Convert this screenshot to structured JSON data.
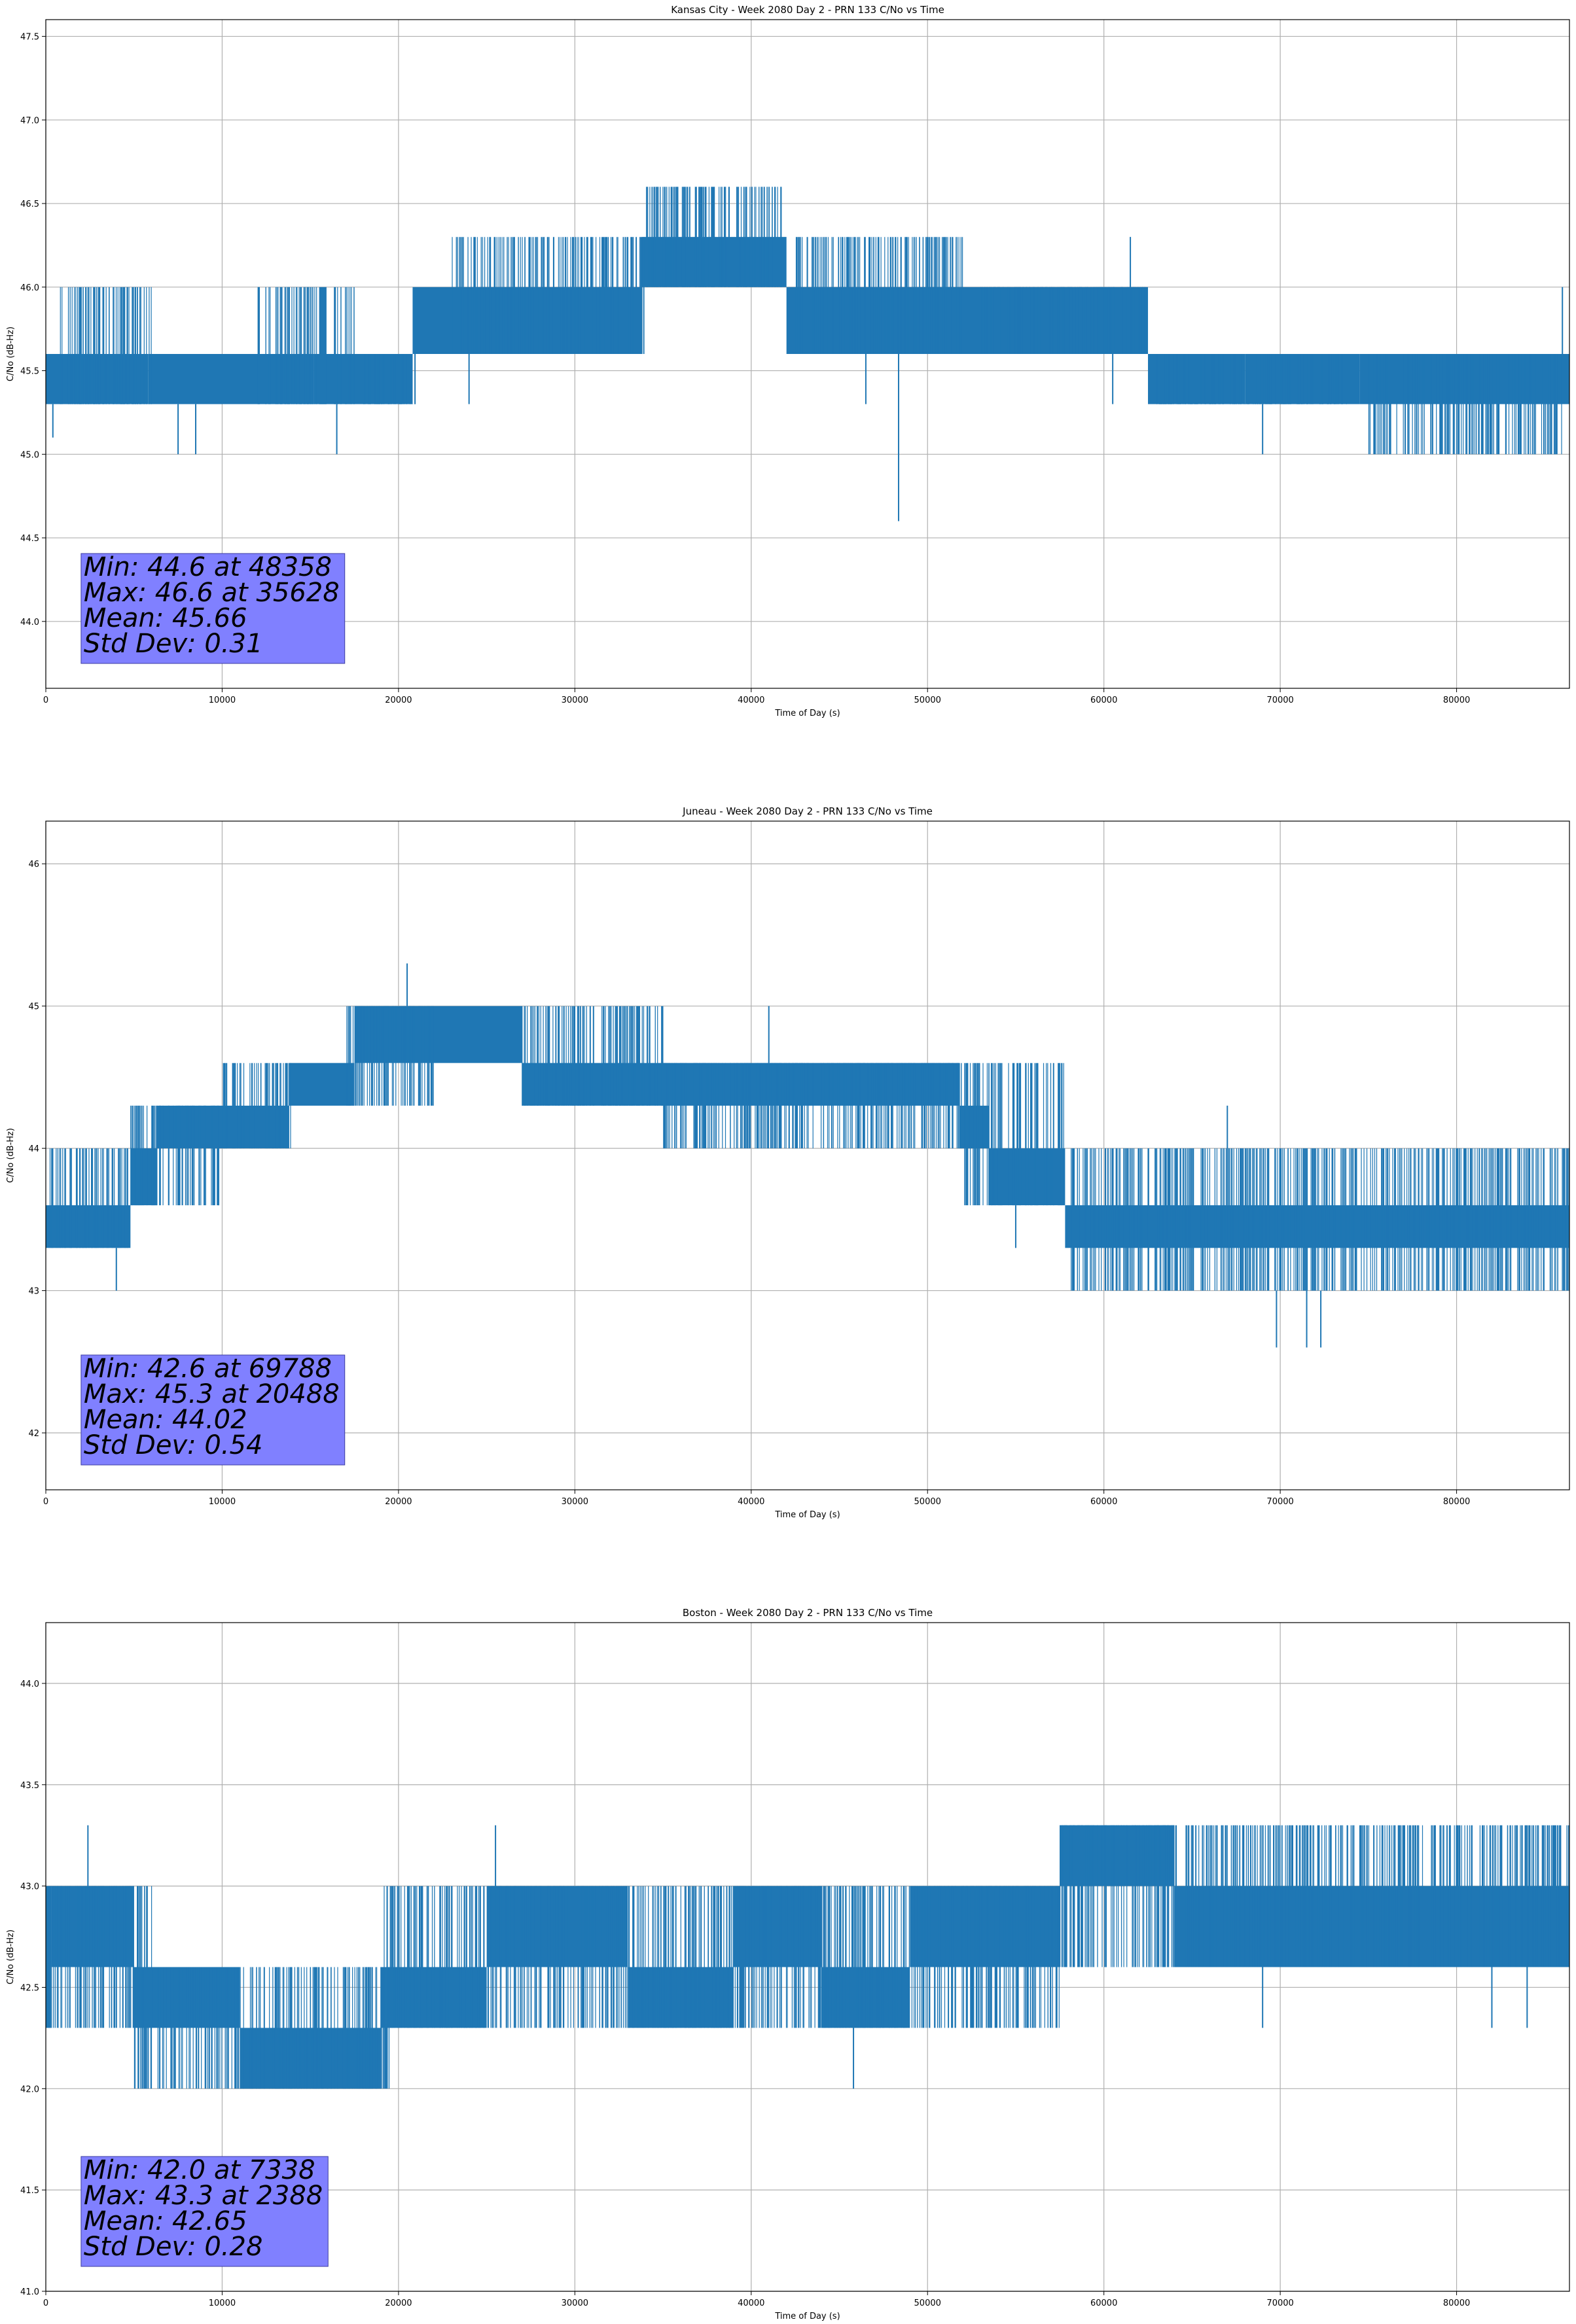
{
  "figure": {
    "line_color": "#1f77b4",
    "grid_color": "#b0b0b0",
    "stats_box_color": "#8080ff"
  },
  "chart_data": [
    {
      "type": "line",
      "title": "Kansas City - Week 2080 Day 2 - PRN 133 C/No vs Time",
      "xlabel": "Time of Day (s)",
      "ylabel": "C/No (dB-Hz)",
      "xlim": [
        0,
        86400
      ],
      "ylim": [
        43.6,
        47.6
      ],
      "xticks": [
        0,
        10000,
        20000,
        30000,
        40000,
        50000,
        60000,
        70000,
        80000
      ],
      "yticks": [
        44.0,
        44.5,
        45.0,
        45.5,
        46.0,
        46.5,
        47.0,
        47.5
      ],
      "ytick_labels": [
        "44.0",
        "44.5",
        "45.0",
        "45.5",
        "46.0",
        "46.5",
        "47.0",
        "47.5"
      ],
      "grid": true,
      "series": [
        {
          "bands": [
            {
              "x": [
                0,
                5800
              ],
              "y": [
                45.3,
                45.6
              ]
            },
            {
              "x": [
                5800,
                15200
              ],
              "y": [
                45.3,
                45.6
              ]
            },
            {
              "x": [
                15200,
                20800
              ],
              "y": [
                45.3,
                45.6
              ]
            },
            {
              "x": [
                20800,
                33800
              ],
              "y": [
                45.6,
                46.0
              ]
            },
            {
              "x": [
                33800,
                42000
              ],
              "y": [
                46.0,
                46.3
              ]
            },
            {
              "x": [
                42000,
                62500
              ],
              "y": [
                45.6,
                46.0
              ]
            },
            {
              "x": [
                62500,
                68000
              ],
              "y": [
                45.3,
                45.6
              ]
            },
            {
              "x": [
                68000,
                74500
              ],
              "y": [
                45.3,
                45.6
              ]
            },
            {
              "x": [
                74500,
                86400
              ],
              "y": [
                45.3,
                45.6
              ]
            }
          ],
          "variation": [
            {
              "x": [
                800,
                6000
              ],
              "y": [
                45.3,
                46.0
              ]
            },
            {
              "x": [
                12000,
                17500
              ],
              "y": [
                45.3,
                46.0
              ]
            },
            {
              "x": [
                18000,
                21000
              ],
              "y": [
                45.3,
                45.6
              ]
            },
            {
              "x": [
                23000,
                34000
              ],
              "y": [
                45.6,
                46.3
              ]
            },
            {
              "x": [
                34000,
                42000
              ],
              "y": [
                46.0,
                46.6
              ]
            },
            {
              "x": [
                42500,
                52000
              ],
              "y": [
                45.6,
                46.3
              ]
            },
            {
              "x": [
                53000,
                62500
              ],
              "y": [
                45.6,
                46.0
              ]
            },
            {
              "x": [
                63000,
                74000
              ],
              "y": [
                45.3,
                45.6
              ]
            },
            {
              "x": [
                75000,
                86000
              ],
              "y": [
                45.0,
                45.6
              ]
            }
          ],
          "excursions": [
            {
              "x": 400,
              "y": [
                45.1,
                45.3
              ]
            },
            {
              "x": 7500,
              "y": [
                45.0,
                45.3
              ]
            },
            {
              "x": 8500,
              "y": [
                45.0,
                45.3
              ]
            },
            {
              "x": 16500,
              "y": [
                45.0,
                45.3
              ]
            },
            {
              "x": 24000,
              "y": [
                45.3,
                45.6
              ]
            },
            {
              "x": 35500,
              "y": [
                46.3,
                46.6
              ]
            },
            {
              "x": 37200,
              "y": [
                46.3,
                46.6
              ]
            },
            {
              "x": 48358,
              "y": [
                44.6,
                45.6
              ]
            },
            {
              "x": 46500,
              "y": [
                45.3,
                45.6
              ]
            },
            {
              "x": 60500,
              "y": [
                45.3,
                45.6
              ]
            },
            {
              "x": 61500,
              "y": [
                46.0,
                46.3
              ]
            },
            {
              "x": 69000,
              "y": [
                45.0,
                45.3
              ]
            },
            {
              "x": 83500,
              "y": [
                45.0,
                45.3
              ]
            },
            {
              "x": 86000,
              "y": [
                45.6,
                46.0
              ]
            }
          ]
        }
      ],
      "stats_box": {
        "lines": [
          "Min: 44.6 at 48358",
          "Max: 46.6 at 35628",
          "Mean: 45.66",
          "Std Dev: 0.31"
        ]
      }
    },
    {
      "type": "line",
      "title": "Juneau - Week 2080 Day 2 - PRN 133 C/No vs Time",
      "xlabel": "Time of Day (s)",
      "ylabel": "C/No (dB-Hz)",
      "xlim": [
        0,
        86400
      ],
      "ylim": [
        41.6,
        46.3
      ],
      "xticks": [
        0,
        10000,
        20000,
        30000,
        40000,
        50000,
        60000,
        70000,
        80000
      ],
      "yticks": [
        42,
        43,
        44,
        45,
        46
      ],
      "ytick_labels": [
        "42",
        "43",
        "44",
        "45",
        "46"
      ],
      "grid": true,
      "series": [
        {
          "bands": [
            {
              "x": [
                0,
                4800
              ],
              "y": [
                43.3,
                43.6
              ]
            },
            {
              "x": [
                4800,
                6300
              ],
              "y": [
                43.6,
                44.0
              ]
            },
            {
              "x": [
                6300,
                13800
              ],
              "y": [
                44.0,
                44.3
              ]
            },
            {
              "x": [
                13800,
                17500
              ],
              "y": [
                44.3,
                44.6
              ]
            },
            {
              "x": [
                17500,
                27000
              ],
              "y": [
                44.6,
                45.0
              ]
            },
            {
              "x": [
                27000,
                51800
              ],
              "y": [
                44.3,
                44.6
              ]
            },
            {
              "x": [
                51800,
                53500
              ],
              "y": [
                44.0,
                44.3
              ]
            },
            {
              "x": [
                53500,
                57800
              ],
              "y": [
                43.6,
                44.0
              ]
            },
            {
              "x": [
                57800,
                70000
              ],
              "y": [
                43.3,
                43.6
              ]
            },
            {
              "x": [
                70000,
                86400
              ],
              "y": [
                43.3,
                43.6
              ]
            }
          ],
          "variation": [
            {
              "x": [
                0,
                4800
              ],
              "y": [
                43.3,
                44.0
              ]
            },
            {
              "x": [
                4800,
                10000
              ],
              "y": [
                43.6,
                44.3
              ]
            },
            {
              "x": [
                10000,
                14000
              ],
              "y": [
                44.0,
                44.6
              ]
            },
            {
              "x": [
                17000,
                22000
              ],
              "y": [
                44.3,
                45.0
              ]
            },
            {
              "x": [
                27000,
                35000
              ],
              "y": [
                44.3,
                45.0
              ]
            },
            {
              "x": [
                35000,
                52000
              ],
              "y": [
                44.0,
                44.6
              ]
            },
            {
              "x": [
                52000,
                57800
              ],
              "y": [
                43.6,
                44.6
              ]
            },
            {
              "x": [
                58000,
                70000
              ],
              "y": [
                43.0,
                44.0
              ]
            },
            {
              "x": [
                70000,
                86400
              ],
              "y": [
                43.0,
                44.0
              ]
            }
          ],
          "excursions": [
            {
              "x": 4000,
              "y": [
                43.0,
                43.3
              ]
            },
            {
              "x": 9800,
              "y": [
                43.6,
                44.0
              ]
            },
            {
              "x": 20488,
              "y": [
                45.0,
                45.3
              ]
            },
            {
              "x": 41000,
              "y": [
                44.6,
                45.0
              ]
            },
            {
              "x": 55000,
              "y": [
                43.3,
                43.6
              ]
            },
            {
              "x": 67000,
              "y": [
                43.6,
                44.3
              ]
            },
            {
              "x": 69788,
              "y": [
                42.6,
                43.0
              ]
            },
            {
              "x": 71500,
              "y": [
                42.6,
                43.0
              ]
            },
            {
              "x": 72300,
              "y": [
                42.6,
                43.0
              ]
            }
          ]
        }
      ],
      "stats_box": {
        "lines": [
          "Min: 42.6 at 69788",
          "Max: 45.3 at 20488",
          "Mean: 44.02",
          "Std Dev: 0.54"
        ]
      }
    },
    {
      "type": "line",
      "title": "Boston - Week 2080 Day 2 - PRN 133 C/No vs Time",
      "xlabel": "Time of Day (s)",
      "ylabel": "C/No (dB-Hz)",
      "xlim": [
        0,
        86400
      ],
      "ylim": [
        41.0,
        44.3
      ],
      "xticks": [
        0,
        10000,
        20000,
        30000,
        40000,
        50000,
        60000,
        70000,
        80000
      ],
      "yticks": [
        41.0,
        41.5,
        42.0,
        42.5,
        43.0,
        43.5,
        44.0
      ],
      "ytick_labels": [
        "41.0",
        "41.5",
        "42.0",
        "42.5",
        "43.0",
        "43.5",
        "44.0"
      ],
      "grid": true,
      "series": [
        {
          "bands": [
            {
              "x": [
                0,
                300
              ],
              "y": [
                42.3,
                43.0
              ]
            },
            {
              "x": [
                300,
                5000
              ],
              "y": [
                42.6,
                43.0
              ]
            },
            {
              "x": [
                5000,
                11000
              ],
              "y": [
                42.3,
                42.6
              ]
            },
            {
              "x": [
                11000,
                19000
              ],
              "y": [
                42.0,
                42.3
              ]
            },
            {
              "x": [
                19000,
                25000
              ],
              "y": [
                42.3,
                42.6
              ]
            },
            {
              "x": [
                25000,
                33000
              ],
              "y": [
                42.6,
                43.0
              ]
            },
            {
              "x": [
                33000,
                39000
              ],
              "y": [
                42.3,
                42.6
              ]
            },
            {
              "x": [
                39000,
                44000
              ],
              "y": [
                42.6,
                43.0
              ]
            },
            {
              "x": [
                44000,
                49000
              ],
              "y": [
                42.3,
                42.6
              ]
            },
            {
              "x": [
                49000,
                57500
              ],
              "y": [
                42.6,
                43.0
              ]
            },
            {
              "x": [
                57500,
                64000
              ],
              "y": [
                43.0,
                43.3
              ]
            },
            {
              "x": [
                64000,
                86400
              ],
              "y": [
                42.6,
                43.0
              ]
            }
          ],
          "variation": [
            {
              "x": [
                0,
                6000
              ],
              "y": [
                42.3,
                43.0
              ]
            },
            {
              "x": [
                5000,
                11000
              ],
              "y": [
                42.0,
                42.6
              ]
            },
            {
              "x": [
                11000,
                19500
              ],
              "y": [
                42.0,
                42.6
              ]
            },
            {
              "x": [
                19000,
                25000
              ],
              "y": [
                42.3,
                43.0
              ]
            },
            {
              "x": [
                25000,
                40000
              ],
              "y": [
                42.3,
                43.0
              ]
            },
            {
              "x": [
                40000,
                50000
              ],
              "y": [
                42.3,
                43.0
              ]
            },
            {
              "x": [
                50000,
                57500
              ],
              "y": [
                42.3,
                43.0
              ]
            },
            {
              "x": [
                57500,
                64000
              ],
              "y": [
                42.6,
                43.3
              ]
            },
            {
              "x": [
                64000,
                86400
              ],
              "y": [
                42.6,
                43.3
              ]
            }
          ],
          "excursions": [
            {
              "x": 2388,
              "y": [
                43.0,
                43.3
              ]
            },
            {
              "x": 7338,
              "y": [
                42.0,
                42.3
              ]
            },
            {
              "x": 25500,
              "y": [
                43.0,
                43.3
              ]
            },
            {
              "x": 45800,
              "y": [
                42.0,
                42.3
              ]
            },
            {
              "x": 69000,
              "y": [
                42.3,
                42.6
              ]
            },
            {
              "x": 82000,
              "y": [
                42.3,
                42.6
              ]
            },
            {
              "x": 84000,
              "y": [
                42.3,
                42.6
              ]
            }
          ]
        }
      ],
      "stats_box": {
        "lines": [
          "Min: 42.0 at 7338",
          "Max: 43.3 at 2388",
          "Mean: 42.65",
          "Std Dev: 0.28"
        ]
      }
    }
  ]
}
